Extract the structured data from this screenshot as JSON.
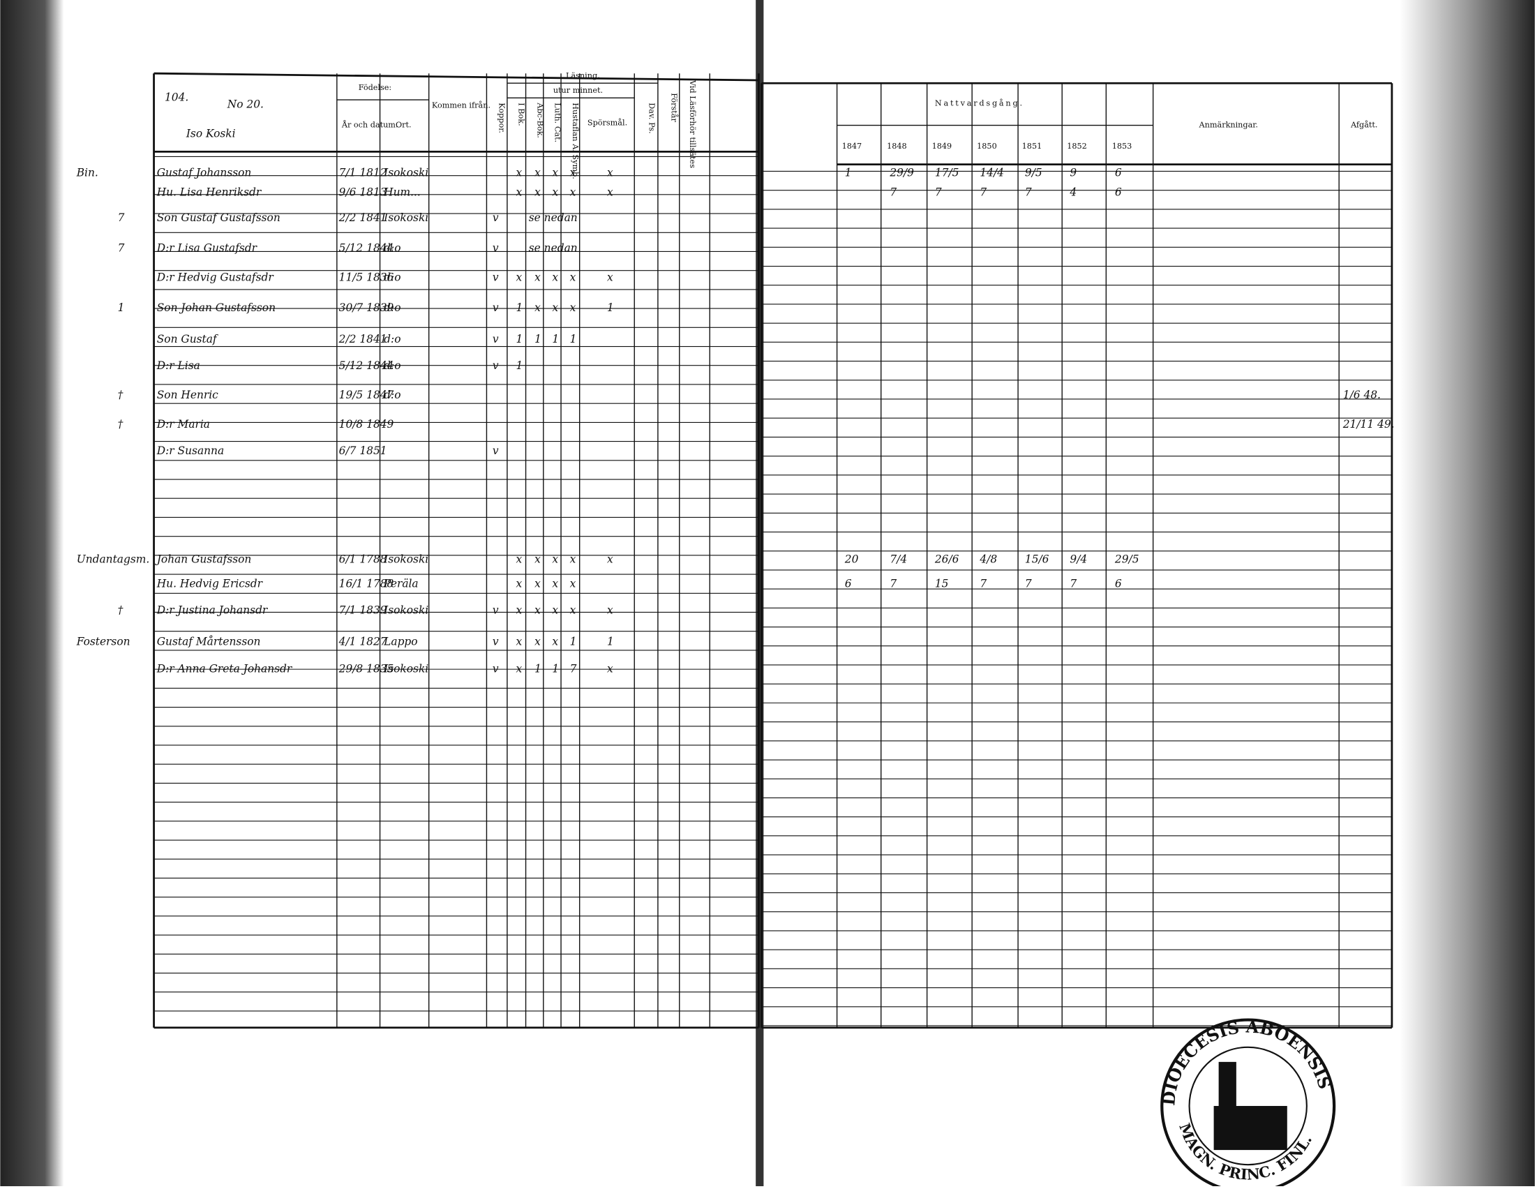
{
  "header": {
    "page_number": "104.",
    "farm_number": "No 20.",
    "farm_name": "Iso Koski"
  },
  "left_columns": {
    "birth": "Födelse:",
    "date": "År och datum.",
    "place": "Ort.",
    "from": "Kommen ifrån.",
    "smallpox": "Koppor.",
    "reading": "Läsning,",
    "by_heart": "utur minnet.",
    "book": "I Bok.",
    "abc": "Abc-Bok.",
    "catechism": "Luth. Cat.",
    "symbols": "Hustaflan A. Symb.",
    "questions": "Spörsmål.",
    "psalms": "Dav. Ps.",
    "understands": "Förstår",
    "examination": "Vid Läsförhör tillsätes"
  },
  "right_columns": {
    "communion": "Nattvardsgång.",
    "years": [
      "1847",
      "1848",
      "1849",
      "1850",
      "1851",
      "1852",
      "1853"
    ],
    "remarks": "Anmärkningar.",
    "departed": "Afgått."
  },
  "rows": [
    {
      "margin": "Bin.",
      "name": "Gustaf Johansson",
      "birth": "7/1 1812",
      "place": "Isokoski",
      "reading": [
        "x",
        "x",
        "x",
        "x",
        "x"
      ],
      "communion": [
        "1",
        "29/9",
        "17/5",
        "14/4",
        "9/5",
        "9",
        "6"
      ]
    },
    {
      "name": "Hu. Lisa Henriksdr",
      "birth": "9/6 1813",
      "place": "Hum...",
      "reading": [
        "x",
        "x",
        "x",
        "x",
        "x"
      ],
      "communion": [
        null,
        "7",
        "7",
        "7",
        "7",
        "4",
        "6"
      ]
    },
    {
      "margin": "7",
      "name": "Son Gustaf Gustafsson",
      "birth": "2/2 1841",
      "place": "Isokoski",
      "smallpox": "v",
      "note": "se nedan"
    },
    {
      "margin": "7",
      "name": "D:r Lisa Gustafsdr",
      "birth": "5/12 1844",
      "place": "d:o",
      "smallpox": "v",
      "note": "se nedan"
    },
    {
      "name": "D:r Hedvig Gustafsdr",
      "birth": "11/5 1836",
      "place": "d:o",
      "smallpox": "v",
      "reading": [
        "x",
        "x",
        "x",
        "x",
        "x"
      ]
    },
    {
      "margin": "1",
      "name": "Son Johan Gustafsson",
      "birth": "30/7 1839",
      "place": "d:o",
      "smallpox": "v",
      "reading": [
        "1",
        "x",
        "x",
        "x",
        "1"
      ]
    },
    {
      "name": "Son Gustaf",
      "birth": "2/2 1841",
      "place": "d:o",
      "smallpox": "v",
      "reading": [
        "1",
        "1",
        "1",
        "1"
      ]
    },
    {
      "name": "D:r Lisa",
      "birth": "5/12 1844",
      "place": "d:o",
      "smallpox": "v",
      "reading": [
        "1"
      ]
    },
    {
      "margin": "†",
      "name": "Son Henric",
      "birth": "19/5 1847",
      "place": "d:o",
      "departed": "1/6 48."
    },
    {
      "margin": "†",
      "name": "D:r Maria",
      "birth": "10/8 1849",
      "departed": "21/11 49."
    },
    {
      "name": "D:r Susanna",
      "birth": "6/7 1851",
      "smallpox": "v"
    },
    {
      "margin": "Undantagsm.",
      "name": "Johan Gustafsson",
      "birth": "6/1 1788",
      "place": "Isokoski",
      "reading": [
        "x",
        "x",
        "x",
        "x",
        "x"
      ],
      "communion": [
        "20",
        "7/4",
        "26/6",
        "4/8",
        "15/6",
        "9/4",
        "29/5"
      ]
    },
    {
      "name": "Hu. Hedvig Ericsdr",
      "birth": "16/1 1788",
      "place": "Peräla",
      "reading": [
        "x",
        "x",
        "x",
        "x"
      ],
      "communion": [
        "6",
        "7",
        "15",
        "7",
        "7",
        "7",
        "6"
      ]
    },
    {
      "margin": "†",
      "name": "D:r Justina Johansdr",
      "birth": "7/1 1839",
      "place": "Isokoski",
      "smallpox": "v",
      "reading": [
        "x",
        "x",
        "x",
        "x",
        "x"
      ]
    },
    {
      "margin": "Fosterson",
      "name": "Gustaf Mårtensson",
      "birth": "4/1 1827",
      "place": "Lappo",
      "smallpox": "v",
      "reading": [
        "x",
        "x",
        "x",
        "1",
        "1"
      ]
    },
    {
      "name": "D:r Anna Greta Johansdr",
      "birth": "29/8 1835",
      "place": "Isokoski",
      "smallpox": "v",
      "reading": [
        "x",
        "1",
        "1",
        "7",
        "x"
      ]
    }
  ],
  "stamp": {
    "top": "DIOECESIS ABOENSIS",
    "bottom": "MAGN. PRINC. FINL."
  }
}
